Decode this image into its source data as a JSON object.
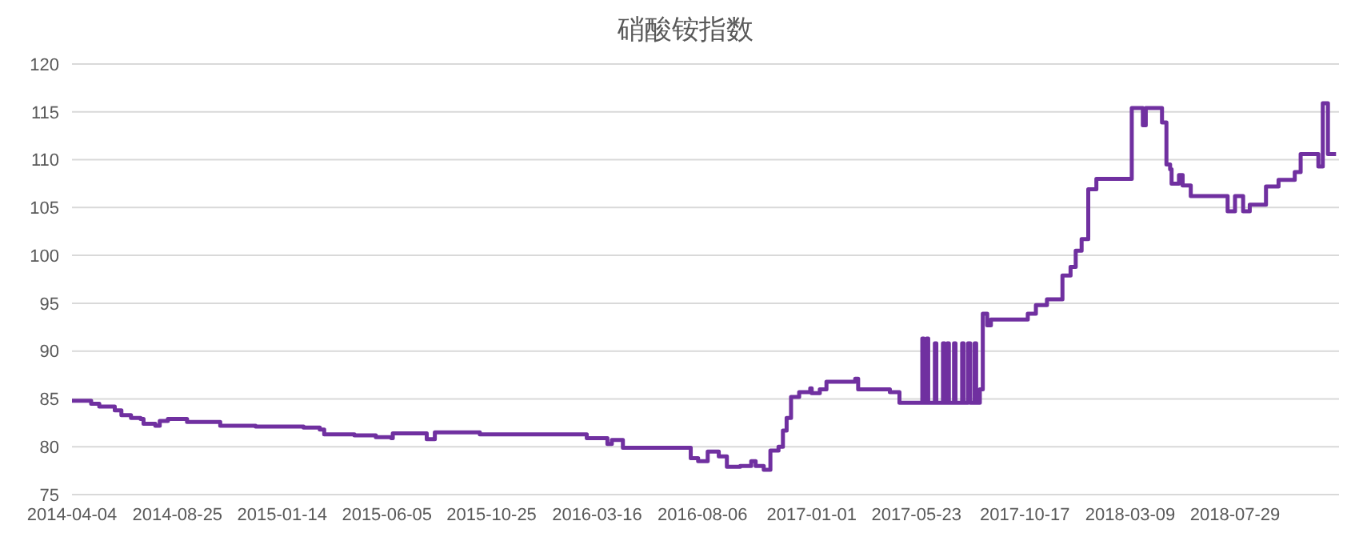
{
  "chart_data": {
    "type": "step",
    "title": "硝酸铵指数",
    "color": "#7030a0",
    "grid": "y",
    "marker": "none",
    "xlim": [
      "2014-04-04",
      "2018-12-17"
    ],
    "xticks": [
      "2014-04-04",
      "2014-08-25",
      "2015-01-14",
      "2015-06-05",
      "2015-10-25",
      "2016-03-16",
      "2016-08-06",
      "2017-01-01",
      "2017-05-23",
      "2017-10-17",
      "2018-03-09",
      "2018-07-29"
    ],
    "ylim": [
      75,
      120
    ],
    "yticks": [
      75,
      80,
      85,
      90,
      95,
      100,
      105,
      110,
      115,
      120
    ],
    "x": [
      "2014-04-04",
      "2014-04-30",
      "2014-05-11",
      "2014-06-01",
      "2014-06-10",
      "2014-06-23",
      "2014-07-06",
      "2014-07-10",
      "2014-07-26",
      "2014-08-01",
      "2014-08-12",
      "2014-09-07",
      "2014-10-16",
      "2014-10-22",
      "2014-12-09",
      "2015-02-12",
      "2015-03-06",
      "2015-03-12",
      "2015-04-22",
      "2015-05-21",
      "2015-06-11",
      "2015-06-13",
      "2015-07-29",
      "2015-08-09",
      "2015-10-09",
      "2016-03-02",
      "2016-03-30",
      "2016-04-05",
      "2016-04-20",
      "2016-07-21",
      "2016-07-31",
      "2016-08-13",
      "2016-08-28",
      "2016-09-08",
      "2016-09-26",
      "2016-10-11",
      "2016-10-17",
      "2016-10-28",
      "2016-11-06",
      "2016-11-17",
      "2016-11-23",
      "2016-11-28",
      "2016-12-04",
      "2016-12-15",
      "2016-12-30",
      "2017-01-01",
      "2017-01-12",
      "2017-01-21",
      "2017-03-01",
      "2017-03-05",
      "2017-04-17",
      "2017-04-30",
      "2017-05-31",
      "2017-06-02",
      "2017-06-06",
      "2017-06-08",
      "2017-06-17",
      "2017-06-19",
      "2017-06-28",
      "2017-06-30",
      "2017-07-04",
      "2017-07-06",
      "2017-07-13",
      "2017-07-15",
      "2017-07-24",
      "2017-07-26",
      "2017-08-01",
      "2017-08-04",
      "2017-08-10",
      "2017-08-12",
      "2017-08-17",
      "2017-08-21",
      "2017-08-27",
      "2017-09-01",
      "2017-10-21",
      "2017-11-01",
      "2017-11-16",
      "2017-12-07",
      "2017-12-18",
      "2017-12-25",
      "2018-01-02",
      "2018-01-11",
      "2018-01-22",
      "2018-03-11",
      "2018-03-26",
      "2018-03-30",
      "2018-04-21",
      "2018-04-27",
      "2018-05-02",
      "2018-05-04",
      "2018-05-14",
      "2018-05-19",
      "2018-05-30",
      "2018-07-19",
      "2018-07-29",
      "2018-08-09",
      "2018-08-18",
      "2018-09-09",
      "2018-09-26",
      "2018-10-18",
      "2018-10-26",
      "2018-11-19",
      "2018-11-25",
      "2018-12-02",
      "2018-12-13"
    ],
    "values": [
      84.8,
      84.5,
      84.2,
      83.8,
      83.3,
      83.0,
      82.9,
      82.4,
      82.2,
      82.7,
      82.9,
      82.6,
      82.6,
      82.2,
      82.1,
      82.0,
      81.8,
      81.3,
      81.2,
      81.0,
      80.9,
      81.4,
      80.8,
      81.5,
      81.3,
      80.9,
      80.3,
      80.7,
      79.9,
      78.8,
      78.5,
      79.5,
      79.0,
      77.9,
      78.0,
      78.5,
      78.0,
      77.6,
      79.6,
      80.0,
      81.7,
      83.0,
      85.2,
      85.7,
      86.1,
      85.6,
      86.0,
      86.8,
      87.1,
      86.0,
      85.7,
      84.6,
      91.3,
      84.6,
      91.3,
      84.6,
      90.8,
      84.6,
      90.8,
      84.6,
      90.8,
      84.6,
      90.8,
      84.6,
      90.8,
      84.6,
      90.8,
      84.6,
      90.8,
      84.6,
      86.0,
      93.9,
      92.7,
      93.3,
      93.9,
      94.8,
      95.4,
      97.9,
      98.8,
      100.5,
      101.7,
      106.9,
      108.0,
      115.4,
      113.6,
      115.4,
      113.9,
      109.5,
      109.0,
      107.5,
      108.4,
      107.3,
      106.2,
      104.6,
      106.2,
      104.6,
      105.3,
      107.2,
      107.9,
      108.7,
      110.6,
      109.3,
      115.9,
      110.6,
      110.6
    ]
  }
}
